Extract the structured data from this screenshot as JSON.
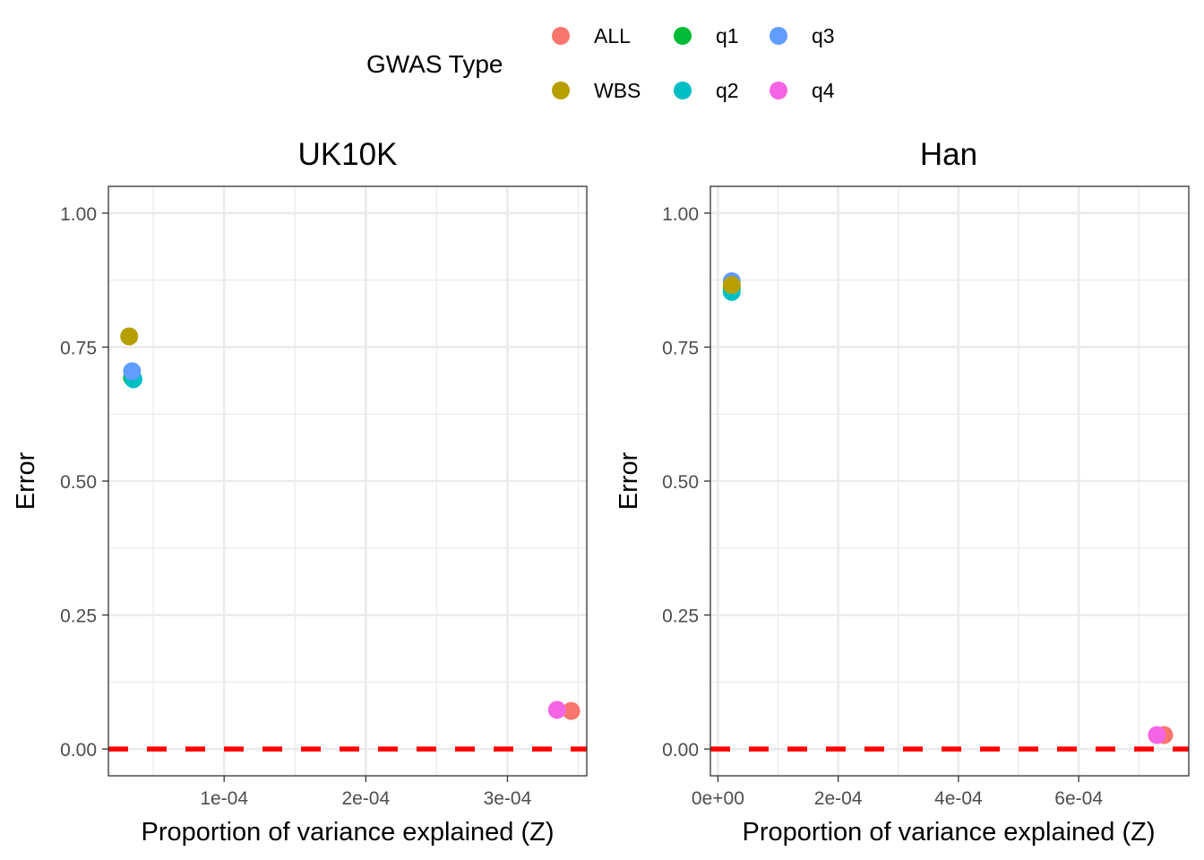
{
  "legend": {
    "title": "GWAS Type",
    "entries": [
      {
        "label": "ALL",
        "color": "#F8766D"
      },
      {
        "label": "q1",
        "color": "#00BA38"
      },
      {
        "label": "q3",
        "color": "#619CFF"
      },
      {
        "label": "WBS",
        "color": "#B79F00"
      },
      {
        "label": "q2",
        "color": "#00BFC4"
      },
      {
        "label": "q4",
        "color": "#F564E3"
      }
    ]
  },
  "chart_data": [
    {
      "type": "scatter",
      "title": "UK10K",
      "xlabel": "Proportion of variance explained (Z)",
      "ylabel": "Error",
      "xlim": [
        1.83e-05,
        0.000356
      ],
      "ylim": [
        -0.05,
        1.05
      ],
      "x_ticks": [
        0.0001,
        0.0002,
        0.0003
      ],
      "x_tick_labels": [
        "1e-04",
        "2e-04",
        "3e-04"
      ],
      "y_ticks": [
        0,
        0.25,
        0.5,
        0.75,
        1.0
      ],
      "y_tick_labels": [
        "0.00",
        "0.25",
        "0.50",
        "0.75",
        "1.00"
      ],
      "reference_line": {
        "y": 0,
        "style": "dashed",
        "color": "#FF0000"
      },
      "grid": true,
      "series": [
        {
          "name": "WBS",
          "color": "#B79F00",
          "points": [
            {
              "x": 3.3e-05,
              "y": 0.77
            }
          ]
        },
        {
          "name": "q1",
          "color": "#00BA38",
          "points": [
            {
              "x": 3.5e-05,
              "y": 0.693
            }
          ]
        },
        {
          "name": "q2",
          "color": "#00BFC4",
          "points": [
            {
              "x": 3.6e-05,
              "y": 0.69
            }
          ]
        },
        {
          "name": "q3",
          "color": "#619CFF",
          "points": [
            {
              "x": 3.5e-05,
              "y": 0.705
            }
          ]
        },
        {
          "name": "ALL",
          "color": "#F8766D",
          "points": [
            {
              "x": 0.000345,
              "y": 0.071
            }
          ]
        },
        {
          "name": "q4",
          "color": "#F564E3",
          "points": [
            {
              "x": 0.000335,
              "y": 0.073
            }
          ]
        }
      ]
    },
    {
      "type": "scatter",
      "title": "Han",
      "xlabel": "Proportion of variance explained (Z)",
      "ylabel": "Error",
      "xlim": [
        -1.25e-05,
        0.000783
      ],
      "ylim": [
        -0.05,
        1.05
      ],
      "x_ticks": [
        0,
        0.0002,
        0.0004,
        0.0006
      ],
      "x_tick_labels": [
        "0e+00",
        "2e-04",
        "4e-04",
        "6e-04"
      ],
      "y_ticks": [
        0,
        0.25,
        0.5,
        0.75,
        1.0
      ],
      "y_tick_labels": [
        "0.00",
        "0.25",
        "0.50",
        "0.75",
        "1.00"
      ],
      "reference_line": {
        "y": 0,
        "style": "dashed",
        "color": "#FF0000"
      },
      "grid": true,
      "series": [
        {
          "name": "q1",
          "color": "#00BA38",
          "points": [
            {
              "x": 2.3e-05,
              "y": 0.86
            }
          ]
        },
        {
          "name": "q2",
          "color": "#00BFC4",
          "points": [
            {
              "x": 2.3e-05,
              "y": 0.853
            }
          ]
        },
        {
          "name": "q3",
          "color": "#619CFF",
          "points": [
            {
              "x": 2.3e-05,
              "y": 0.873
            }
          ]
        },
        {
          "name": "WBS",
          "color": "#B79F00",
          "points": [
            {
              "x": 2.3e-05,
              "y": 0.866
            }
          ]
        },
        {
          "name": "ALL",
          "color": "#F8766D",
          "points": [
            {
              "x": 0.000742,
              "y": 0.026
            }
          ]
        },
        {
          "name": "q4",
          "color": "#F564E3",
          "points": [
            {
              "x": 0.00073,
              "y": 0.026
            }
          ]
        }
      ]
    }
  ]
}
